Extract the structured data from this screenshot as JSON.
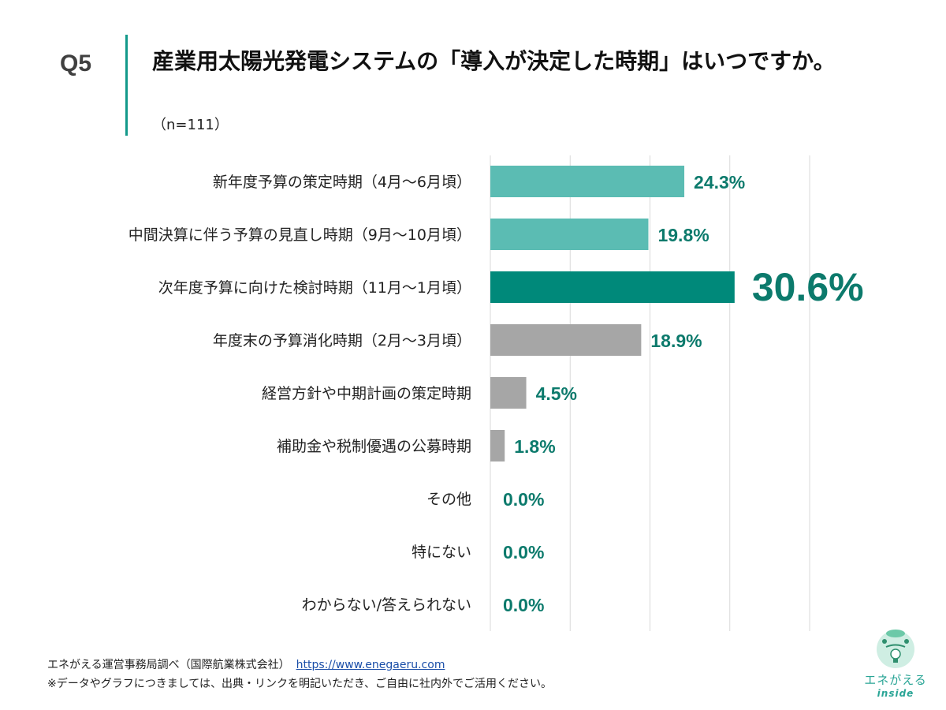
{
  "header": {
    "question_no": "Q5",
    "title": "産業用太陽光発電システムの「導入が決定した時期」はいつですか。",
    "sample": "（n=111）"
  },
  "chart_data": {
    "type": "bar",
    "orientation": "horizontal",
    "categories": [
      "新年度予算の策定時期（4月～6月頃）",
      "中間決算に伴う予算の見直し時期（9月～10月頃）",
      "次年度予算に向けた検討時期（11月～1月頃）",
      "年度末の予算消化時期（2月～3月頃）",
      "経営方針や中期計画の策定時期",
      "補助金や税制優遇の公募時期",
      "その他",
      "特にない",
      "わからない/答えられない"
    ],
    "values": [
      24.3,
      19.8,
      30.6,
      18.9,
      4.5,
      1.8,
      0.0,
      0.0,
      0.0
    ],
    "data_labels": [
      "24.3%",
      "19.8%",
      "30.6%",
      "18.9%",
      "4.5%",
      "1.8%",
      "0.0%",
      "0.0%",
      "0.0%"
    ],
    "bar_colors": [
      "#5bbcb3",
      "#5bbcb3",
      "#00897a",
      "#a6a6a6",
      "#a6a6a6",
      "#a6a6a6",
      "#a6a6a6",
      "#a6a6a6",
      "#a6a6a6"
    ],
    "highlight_index": 2,
    "label_color": "#0c7a6c",
    "xlim": [
      0,
      40
    ],
    "grid": true,
    "unit": "%"
  },
  "footer": {
    "source": "エネがえる運営事務局調べ（国際航業株式会社）",
    "url": "https://www.enegaeru.com",
    "note": "※データやグラフにつきましては、出典・リンクを明記いただき、ご自由に社内外でご活用ください。"
  },
  "logo": {
    "text": "エネがえる",
    "sub": "inside"
  }
}
